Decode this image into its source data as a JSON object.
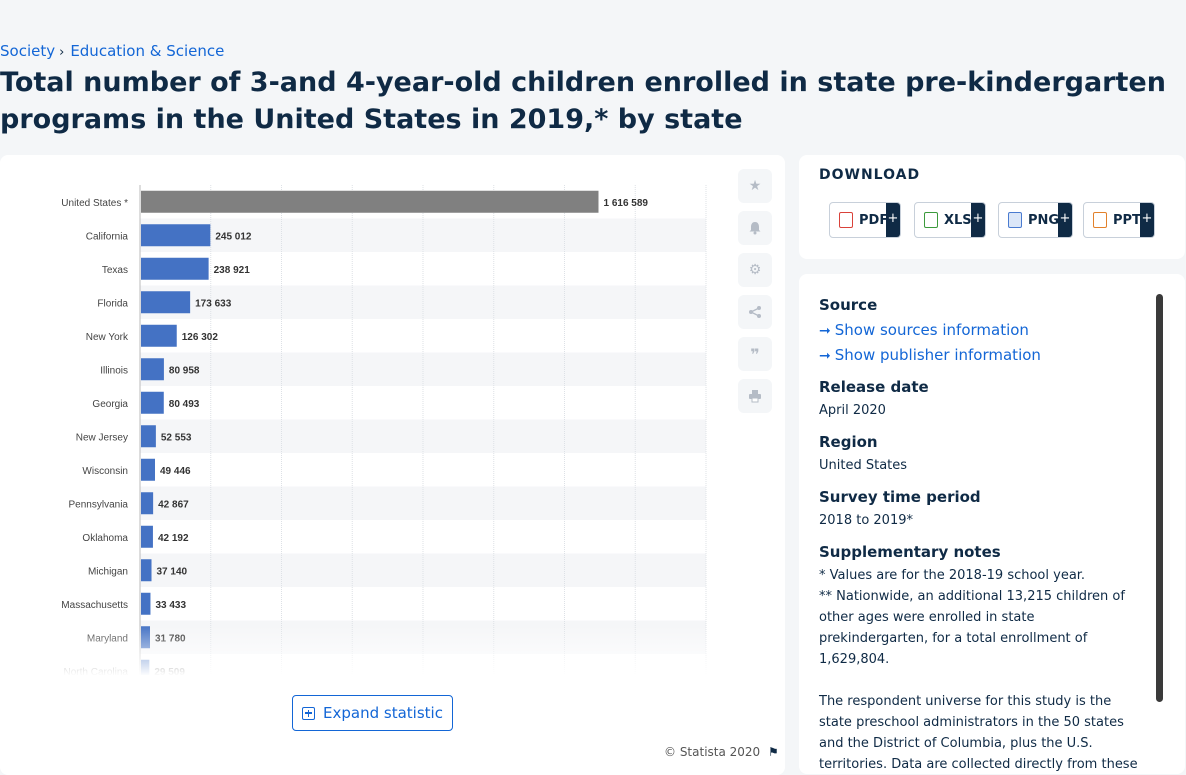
{
  "breadcrumb": [
    "Society",
    "Education & Science"
  ],
  "title": "Total number of 3-and 4-year-old children enrolled in state pre-kindergarten programs in the United States in 2019,* by state",
  "chart_data": {
    "type": "bar",
    "orientation": "horizontal",
    "categories": [
      "United States *",
      "California",
      "Texas",
      "Florida",
      "New York",
      "Illinois",
      "Georgia",
      "New Jersey",
      "Wisconsin",
      "Pennsylvania",
      "Oklahoma",
      "Michigan",
      "Massachusetts",
      "Maryland",
      "North Carolina"
    ],
    "values": [
      1616589,
      245012,
      238921,
      173633,
      126302,
      80958,
      80493,
      52553,
      49446,
      42867,
      42192,
      37140,
      33433,
      31780,
      29509
    ],
    "value_labels": [
      "1 616 589",
      "245 012",
      "238 921",
      "173 633",
      "126 302",
      "80 958",
      "80 493",
      "52 553",
      "49 446",
      "42 867",
      "42 192",
      "37 140",
      "33 433",
      "31 780",
      "29 509"
    ],
    "highlight_index": 0,
    "colors": {
      "bar": "#4472c4",
      "highlight": "#808080"
    },
    "xlim": [
      0,
      2000000
    ],
    "grid": true,
    "legend": "none"
  },
  "expand_label": "Expand statistic",
  "copyright": "© Statista 2020",
  "tools": [
    "star-icon",
    "bell-icon",
    "gear-icon",
    "share-icon",
    "quote-icon",
    "print-icon"
  ],
  "download": {
    "heading": "DOWNLOAD",
    "formats": [
      {
        "label": "PDF",
        "color": "#d9423a"
      },
      {
        "label": "XLS",
        "color": "#3c9a3c"
      },
      {
        "label": "PNG",
        "color": "#4a7bd0"
      },
      {
        "label": "PPT",
        "color": "#e2812b"
      }
    ],
    "plus": "+"
  },
  "info": {
    "source_heading": "Source",
    "show_sources": "Show sources information",
    "show_publisher": "Show publisher information",
    "release_heading": "Release date",
    "release_value": "April 2020",
    "region_heading": "Region",
    "region_value": "United States",
    "survey_heading": "Survey time period",
    "survey_value": "2018 to 2019*",
    "notes_heading": "Supplementary notes",
    "note1": "* Values are for the 2018-19 school year.",
    "note2": "** Nationwide, an additional 13,215 children of other ages were enrolled in state prekindergarten, for a total enrollment of 1,629,804.",
    "note3": "The respondent universe for this study is the state preschool administrators in the 50 states and the District of Columbia, plus the U.S. territories. Data are collected directly from these entities through a web-based survey of"
  }
}
